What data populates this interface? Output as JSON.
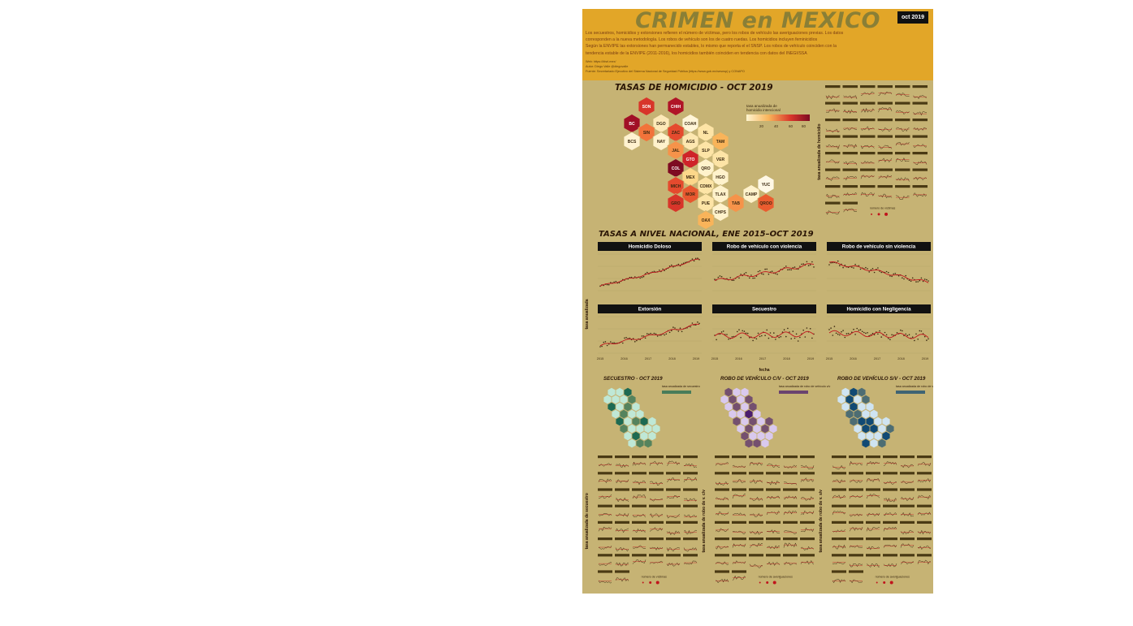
{
  "poster": {
    "title": "CRIMEN en MEXICO",
    "date_badge": "oct 2019",
    "intro_lines": [
      "Los secuestros, homicidios y extorsiones refieren el número de víctimas, pero los robos de vehículo las averiguaciones previas. Los datos",
      "corresponden a la nueva metodología. Los robos de vehículo son los de cuatro ruedas. Los homicidios incluyen feminicidios",
      "Según la ENVIPE las extorsiones han permanecido estables, lo mismo que reporta el el SNSP. Los robos de vehículo coinciden con la",
      "tendencia estable de la ENVIPE (2011-2016), los homicidios también coinciden en tendencia con datos del INEGI/SSA"
    ],
    "meta_lines": [
      "Web: https://blsrl.mex/",
      "Autor: Diego Valle @diegovalle",
      "Fuente: Secretariado Ejecutivo del Sistema Nacional de Seguridad Pública (https://www.gob.mx/sesnsp) y CONAPO"
    ]
  },
  "homicide_map": {
    "title": "TASAS DE HOMICIDIO - OCT 2019",
    "legend_title_1": "tasa anualizada de",
    "legend_title_2": "homicidio intencional",
    "legend_ticks": [
      "20",
      "40",
      "60",
      "80"
    ],
    "cells": [
      {
        "s": "SON",
        "c": "#d8352a",
        "t": "light"
      },
      {
        "s": "CHIH",
        "c": "#b01427",
        "t": "light"
      },
      {
        "s": "BC",
        "c": "#a10f26",
        "t": "light"
      },
      {
        "s": "DGO",
        "c": "#fde9b8",
        "t": "dark"
      },
      {
        "s": "COAH",
        "c": "#fff5d8",
        "t": "dark"
      },
      {
        "s": "SIN",
        "c": "#f2733a",
        "t": "dark"
      },
      {
        "s": "ZAC",
        "c": "#e54a2e",
        "t": "dark"
      },
      {
        "s": "NL",
        "c": "#fde4a6",
        "t": "dark"
      },
      {
        "s": "BCS",
        "c": "#fff2d0",
        "t": "dark"
      },
      {
        "s": "NAY",
        "c": "#fff2cc",
        "t": "dark"
      },
      {
        "s": "AGS",
        "c": "#fde7b0",
        "t": "dark"
      },
      {
        "s": "TAM",
        "c": "#f9b45a",
        "t": "dark"
      },
      {
        "s": "JAL",
        "c": "#f6934a",
        "t": "dark"
      },
      {
        "s": "SLP",
        "c": "#fde4a6",
        "t": "dark"
      },
      {
        "s": "GTO",
        "c": "#cf2329",
        "t": "light"
      },
      {
        "s": "VER",
        "c": "#fde4a6",
        "t": "dark"
      },
      {
        "s": "COL",
        "c": "#7e0b22",
        "t": "light"
      },
      {
        "s": "QRO",
        "c": "#fff2cc",
        "t": "dark"
      },
      {
        "s": "MEX",
        "c": "#fcd78a",
        "t": "dark"
      },
      {
        "s": "HGO",
        "c": "#fff2cc",
        "t": "dark"
      },
      {
        "s": "CDMX",
        "c": "#fde4a6",
        "t": "dark"
      },
      {
        "s": "YUC",
        "c": "#fff8e6",
        "t": "dark"
      },
      {
        "s": "MICH",
        "c": "#e54a2e",
        "t": "dark"
      },
      {
        "s": "MOR",
        "c": "#e8572f",
        "t": "dark"
      },
      {
        "s": "TLAX",
        "c": "#fff2cc",
        "t": "dark"
      },
      {
        "s": "CAMP",
        "c": "#fff2cc",
        "t": "dark"
      },
      {
        "s": "GRO",
        "c": "#d8352a",
        "t": "dark"
      },
      {
        "s": "PUE",
        "c": "#fde4a6",
        "t": "dark"
      },
      {
        "s": "TAB",
        "c": "#f6934a",
        "t": "dark"
      },
      {
        "s": "QROO",
        "c": "#ea5c2f",
        "t": "dark"
      },
      {
        "s": "CHPS",
        "c": "#fff2cc",
        "t": "dark"
      },
      {
        "s": "OAX",
        "c": "#f9b45a",
        "t": "dark"
      }
    ],
    "small_multiples_ylabel": "tasa anualizada de homicidio",
    "count_legend": "número de víctimas"
  },
  "national": {
    "title": "TASAS A NIVEL NACIONAL, ENE 2015–OCT 2019",
    "ylabel": "tasa anualizada",
    "xlabel": "fecha",
    "panels": [
      {
        "name": "Homicidio Doloso",
        "start": 15.5,
        "end": 29.5,
        "wig": 0.6
      },
      {
        "name": "Robo de vehículo con violencia",
        "start": 36,
        "end": 44,
        "wig": 1.2
      },
      {
        "name": "Robo de vehículo sin violencia",
        "start": 60,
        "end": 50,
        "wig": 1.0
      },
      {
        "name": "Extorsión",
        "start": 3.7,
        "end": 7.2,
        "wig": 0.3
      },
      {
        "name": "Secuestro",
        "start": 1.0,
        "end": 1.1,
        "wig": 0.2
      },
      {
        "name": "Homicidio con Negligencia",
        "start": 18,
        "end": 17.6,
        "wig": 0.4
      }
    ],
    "years": [
      "2015",
      "2016",
      "2017",
      "2018",
      "2019"
    ]
  },
  "small_maps": [
    {
      "title": "SECUESTRO - OCT 2019",
      "legend": "tasa anualizada de secuestro",
      "c1": "#bfe8d6",
      "c2": "#1d6a52",
      "ylabel": "tasa anualizada de secuestro",
      "count_legend": "número de víctimas"
    },
    {
      "title": "ROBO DE VEHÍCULO C/V - OCT 2019",
      "legend": "tasa anualizada de robo de vehículo c/v",
      "c1": "#d9c9ee",
      "c2": "#4b1e6e",
      "ylabel": "tasa anualizada de robo de v. c/v",
      "count_legend": "número de averiguaciones"
    },
    {
      "title": "ROBO DE VEHÍCULO S/V - OCT 2019",
      "legend": "tasa anualizada de robo de vehículo s/v",
      "c1": "#cfe4f2",
      "c2": "#114a74",
      "ylabel": "tasa anualizada de robo de v. s/v",
      "count_legend": "número de averiguaciones"
    }
  ],
  "colors": {
    "poster_bg": "#c6b374",
    "header_bg": "#e2a628",
    "trend_red": "#c0141c",
    "points": "#3a2810"
  }
}
